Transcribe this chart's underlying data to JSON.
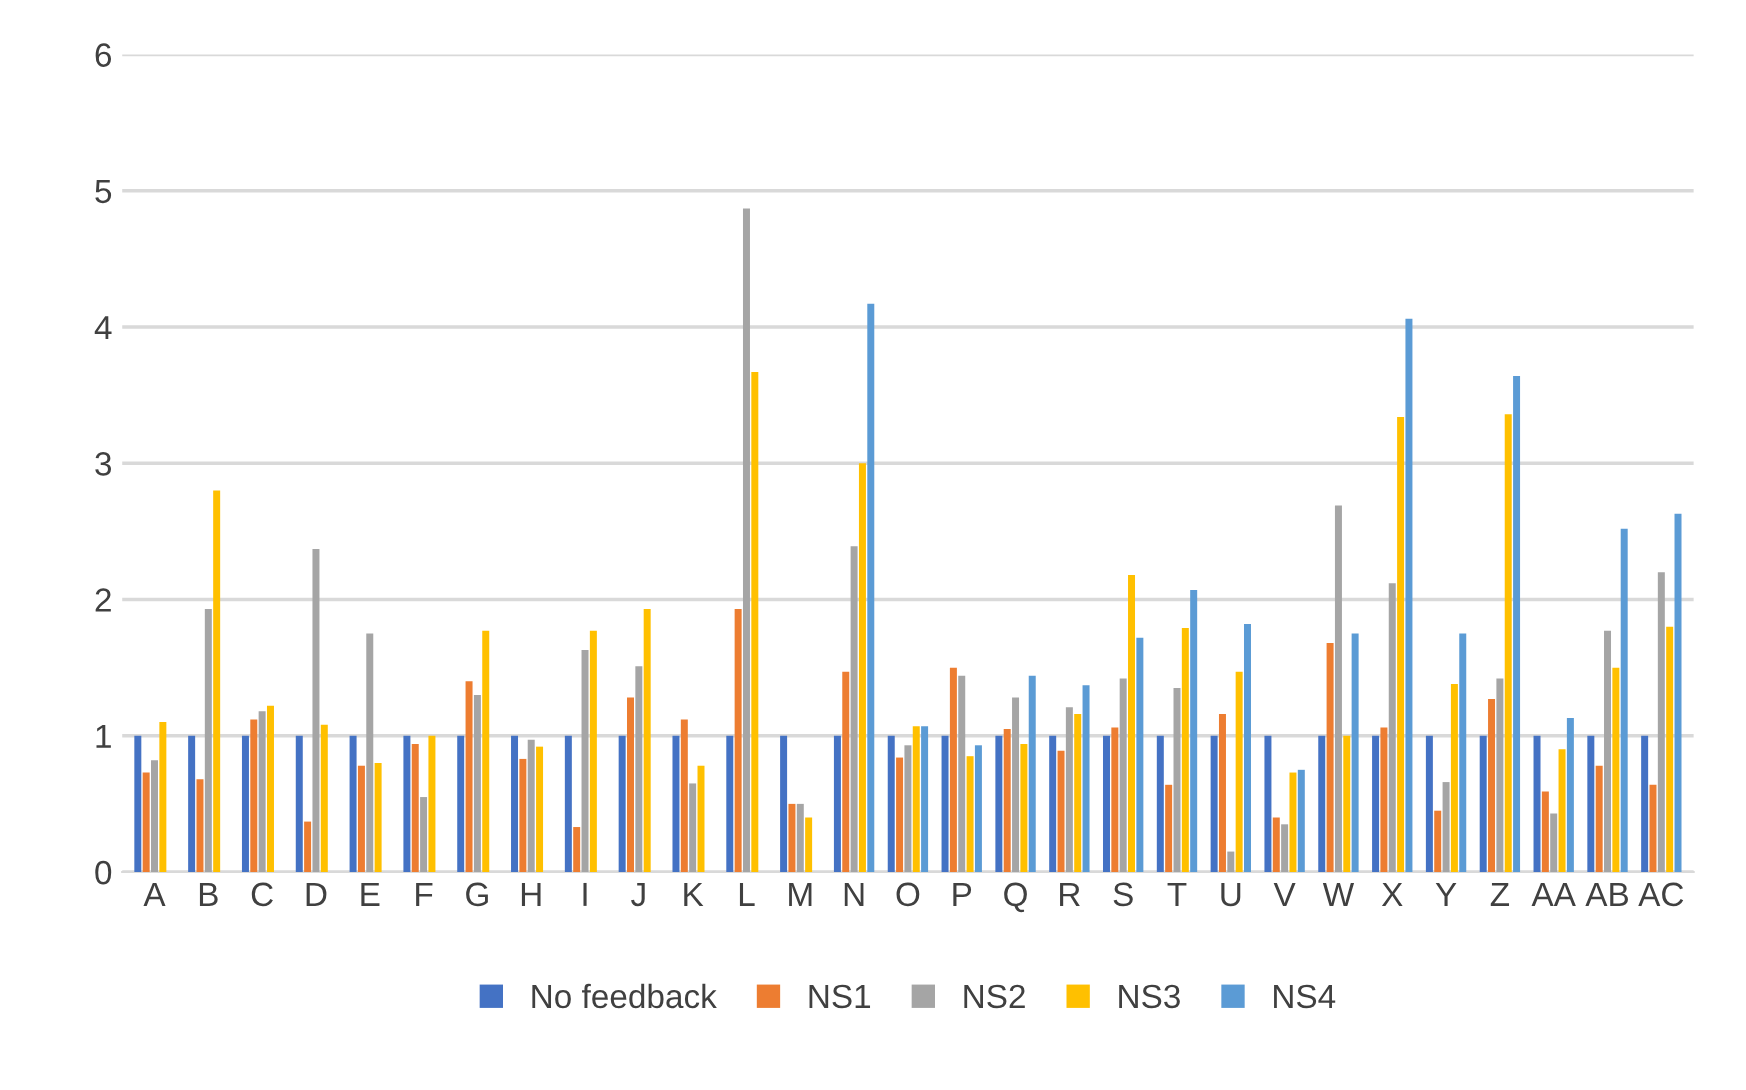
{
  "chart_data": {
    "type": "bar",
    "categories": [
      "A",
      "B",
      "C",
      "D",
      "E",
      "F",
      "G",
      "H",
      "I",
      "J",
      "K",
      "L",
      "M",
      "N",
      "O",
      "P",
      "Q",
      "R",
      "S",
      "T",
      "U",
      "V",
      "W",
      "X",
      "Y",
      "Z",
      "AA",
      "AB",
      "AC"
    ],
    "series": [
      {
        "name": "No feedback",
        "color": "#4472c4",
        "values": [
          1,
          1,
          1,
          1,
          1,
          1,
          1,
          1,
          1,
          1,
          1,
          1,
          1,
          1,
          1,
          1,
          1,
          1,
          1,
          1,
          1,
          1,
          1,
          1,
          1,
          1,
          1,
          1,
          1
        ]
      },
      {
        "name": "NS1",
        "color": "#ed7d31",
        "values": [
          0.73,
          0.68,
          1.12,
          0.37,
          0.78,
          0.94,
          1.4,
          0.83,
          0.33,
          1.28,
          1.12,
          1.93,
          0.5,
          1.47,
          0.84,
          1.5,
          1.05,
          0.89,
          1.06,
          0.64,
          1.16,
          0.4,
          1.68,
          1.06,
          0.45,
          1.27,
          0.59,
          0.78,
          0.64
        ]
      },
      {
        "name": "NS2",
        "color": "#a5a5a5",
        "values": [
          0.82,
          1.93,
          1.18,
          2.37,
          1.75,
          0.55,
          1.3,
          0.97,
          1.63,
          1.51,
          0.65,
          4.87,
          0.5,
          2.39,
          0.93,
          1.44,
          1.28,
          1.21,
          1.42,
          1.35,
          0.15,
          0.35,
          2.69,
          2.12,
          0.66,
          1.42,
          0.43,
          1.77,
          2.2
        ]
      },
      {
        "name": "NS3",
        "color": "#ffc000",
        "values": [
          1.1,
          2.8,
          1.22,
          1.08,
          0.8,
          1.0,
          1.77,
          0.92,
          1.77,
          1.93,
          0.78,
          3.67,
          0.4,
          3.0,
          1.07,
          0.85,
          0.94,
          1.16,
          2.18,
          1.79,
          1.47,
          0.73,
          1.0,
          3.34,
          1.38,
          3.36,
          0.9,
          1.5,
          1.8
        ]
      },
      {
        "name": "NS4",
        "color": "#5b9bd5",
        "values": [
          null,
          null,
          null,
          null,
          null,
          null,
          null,
          null,
          null,
          null,
          null,
          null,
          null,
          4.17,
          1.07,
          0.93,
          1.44,
          1.37,
          1.72,
          2.07,
          1.82,
          0.75,
          1.75,
          4.06,
          1.75,
          3.64,
          1.13,
          2.52,
          2.63
        ]
      }
    ],
    "ylim": [
      0,
      6
    ],
    "yticks": [
      0,
      1,
      2,
      3,
      4,
      5,
      6
    ],
    "grid": "y",
    "legend": "bottom"
  }
}
